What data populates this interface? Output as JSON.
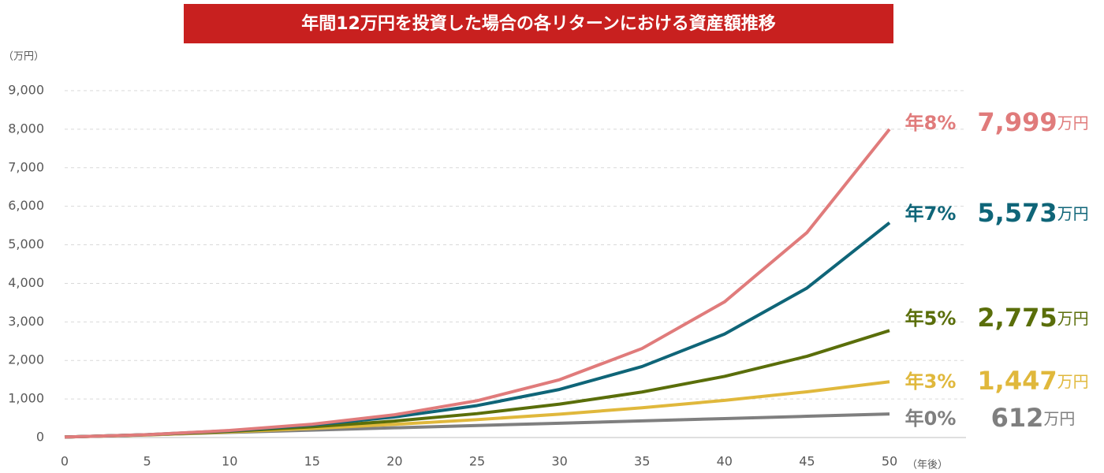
{
  "chart_data": {
    "type": "line",
    "title": "年間12万円を投資した場合の各リターンにおける資産額推移",
    "y_label": "（万円）",
    "x_label": "（年後）",
    "x": [
      0,
      5,
      10,
      15,
      20,
      25,
      30,
      35,
      40,
      45,
      50
    ],
    "xlim": [
      0,
      50
    ],
    "xticks": [
      0,
      5,
      10,
      15,
      20,
      25,
      30,
      35,
      40,
      45,
      50
    ],
    "ylim": [
      0,
      9000
    ],
    "yticks": [
      0,
      {
        "value": 1000,
        "label": "1,000"
      },
      {
        "value": 2000,
        "label": "2,000"
      },
      {
        "value": 3000,
        "label": "3,000"
      },
      {
        "value": 4000,
        "label": "4,000"
      },
      {
        "value": 5000,
        "label": "5,000"
      },
      {
        "value": 6000,
        "label": "6,000"
      },
      {
        "value": 7000,
        "label": "7,000"
      },
      {
        "value": 8000,
        "label": "8,000"
      },
      {
        "value": 9000,
        "label": "9,000"
      }
    ],
    "grid": true,
    "series": [
      {
        "name": "年8%",
        "color": "#e07b7b",
        "values": [
          12,
          74,
          183,
          346,
          590,
          955,
          1500,
          2310,
          3520,
          5320,
          7999
        ],
        "end_label": "7,999",
        "end_unit": "万円"
      },
      {
        "name": "年7%",
        "color": "#0f6578",
        "values": [
          12,
          73,
          177,
          324,
          533,
          829,
          1248,
          1842,
          2684,
          3879,
          5573
        ],
        "end_label": "5,573",
        "end_unit": "万円"
      },
      {
        "name": "年5%",
        "color": "#5a6e0a",
        "values": [
          12,
          71,
          161,
          278,
          428,
          620,
          866,
          1181,
          1587,
          2108,
          2775
        ],
        "end_label": "2,775",
        "end_unit": "万円"
      },
      {
        "name": "年3%",
        "color": "#e0b83c",
        "values": [
          12,
          67,
          146,
          236,
          342,
          464,
          607,
          772,
          964,
          1187,
          1447
        ],
        "end_label": "1,447",
        "end_unit": "万円"
      },
      {
        "name": "年0%",
        "color": "#7f7f7f",
        "values": [
          12,
          72,
          132,
          192,
          252,
          312,
          372,
          432,
          492,
          552,
          612
        ],
        "end_label": "612",
        "end_unit": "万円"
      }
    ]
  }
}
